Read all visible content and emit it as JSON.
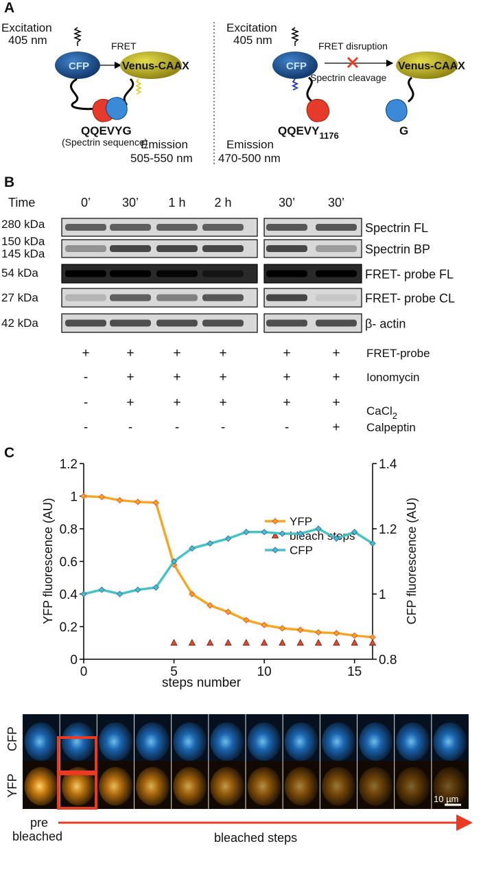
{
  "panel_a": {
    "label": "A",
    "left": {
      "excitation": "Excitation",
      "excitation_nm": "405 nm",
      "fret": "FRET",
      "cfp": "CFP",
      "venus": "Venus-CAAX",
      "sequence": "QQEVYG",
      "sequence_note": "(Spectrin sequence)",
      "emission": "Emission",
      "emission_nm": "505-550 nm"
    },
    "right": {
      "excitation": "Excitation",
      "excitation_nm": "405 nm",
      "fret": "FRET disruption",
      "cfp": "CFP",
      "venus": "Venus-CAAX",
      "cleavage": "Spectrin cleavage",
      "fragment": "QQEVY",
      "fragment_sub": "1176",
      "g": "G",
      "emission": "Emission",
      "emission_nm": "470-500 nm"
    }
  },
  "panel_b": {
    "label": "B",
    "time_label": "Time",
    "times": [
      "0’",
      "30’",
      "1 h",
      "2 h",
      "30’",
      "30’"
    ],
    "sizes": [
      "280 kDa",
      "150 kDa",
      "145 kDa",
      "54 kDa",
      "27 kDa",
      "42 kDa"
    ],
    "bands": [
      "Spectrin FL",
      "Spectrin BP",
      "FRET- probe FL",
      "FRET- probe CL",
      "β- actin"
    ],
    "treatments": [
      {
        "name": "FRET-probe",
        "signs": [
          "+",
          "+",
          "+",
          "+",
          "+",
          "+"
        ]
      },
      {
        "name": "Ionomycin",
        "signs": [
          "-",
          "+",
          "+",
          "+",
          "+",
          "+"
        ]
      },
      {
        "name": "CaCl",
        "subscript": "2",
        "signs": [
          "-",
          "+",
          "+",
          "+",
          "+",
          "+"
        ]
      },
      {
        "name": "Calpeptin",
        "signs": [
          "-",
          "-",
          "-",
          "-",
          "-",
          "+"
        ]
      }
    ]
  },
  "chart_data": {
    "type": "line",
    "label": "C",
    "x_label": "steps number",
    "y_label": "YFP fluorescence (AU)",
    "y2_label": "CFP fluorescence (AU)",
    "x": [
      0,
      1,
      2,
      3,
      4,
      5,
      6,
      7,
      8,
      9,
      10,
      11,
      12,
      13,
      14,
      15,
      16
    ],
    "xlim": [
      0,
      16
    ],
    "xticks": [
      0,
      5,
      10,
      15
    ],
    "ylim": [
      0,
      1.2
    ],
    "yticks": [
      0,
      0.2,
      0.4,
      0.6,
      0.8,
      1,
      1.2
    ],
    "y2lim": [
      0.8,
      1.4
    ],
    "y2ticks": [
      0.8,
      1,
      1.2,
      1.4
    ],
    "series": [
      {
        "name": "YFP",
        "color": "#f5a623",
        "marker": "diamond",
        "marker_edge": "#e8552a",
        "line": true,
        "values": [
          1.0,
          0.995,
          0.975,
          0.965,
          0.96,
          0.58,
          0.4,
          0.33,
          0.29,
          0.24,
          0.21,
          0.19,
          0.18,
          0.165,
          0.16,
          0.145,
          0.135
        ]
      },
      {
        "name": "bleach steps",
        "color": "#e04a2c",
        "marker": "triangle",
        "marker_edge": "#5a1a10",
        "line": false,
        "values": [
          null,
          null,
          null,
          null,
          null,
          0.1,
          0.1,
          0.1,
          0.1,
          0.1,
          0.1,
          0.1,
          0.1,
          0.1,
          0.1,
          0.1,
          0.1
        ]
      },
      {
        "name": "CFP",
        "color": "#45c3c6",
        "marker": "diamond",
        "marker_edge": "#3a6fb0",
        "line": true,
        "axis": "y2",
        "values": [
          1.0,
          1.013,
          1.0,
          1.013,
          1.02,
          1.1,
          1.14,
          1.155,
          1.17,
          1.19,
          1.19,
          1.185,
          1.185,
          1.2,
          1.17,
          1.19,
          1.155
        ]
      }
    ]
  },
  "panel_d": {
    "cfp": "CFP",
    "yfp": "YFP",
    "scale": "10 µm",
    "pre": "pre",
    "pre2": "bleached",
    "steps": "bleached steps"
  }
}
